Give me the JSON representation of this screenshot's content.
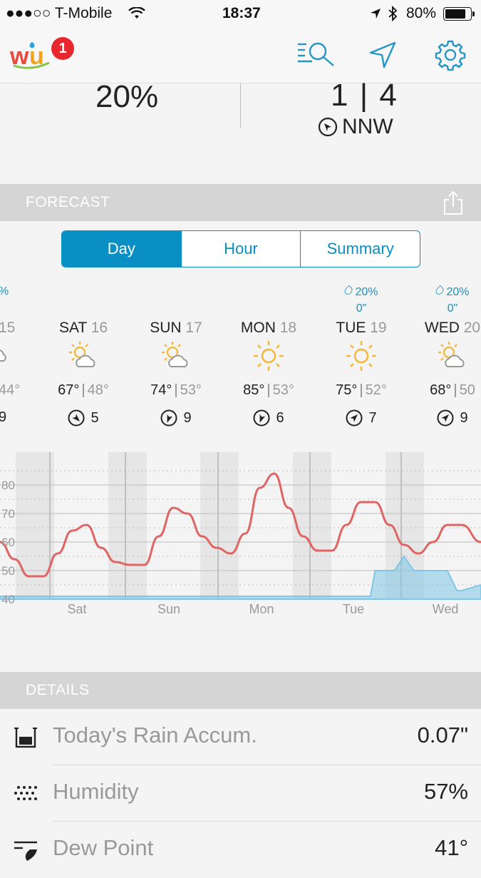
{
  "status_bar": {
    "carrier": "●●●○○ T-Mobile",
    "time": "18:37",
    "battery": "80%"
  },
  "app_bar": {
    "badge_count": "1",
    "icons": [
      "wu-logo",
      "search-list-icon",
      "location-arrow-icon",
      "gear-icon"
    ]
  },
  "conditions": {
    "left_value": "20%",
    "right_value": "1 | 4",
    "wind_dir": "NNW"
  },
  "forecast": {
    "title": "FORECAST",
    "tabs": [
      {
        "label": "Day",
        "active": true
      },
      {
        "label": "Hour",
        "active": false
      },
      {
        "label": "Summary",
        "active": false
      }
    ],
    "left_edge": {
      "precip": "%",
      "day_num": "15",
      "low": "44°",
      "wind": "9"
    },
    "days": [
      {
        "name": "SAT",
        "num": "16",
        "precip_pct": "",
        "precip_amt": "",
        "icon": "partly-sunny",
        "high": "67°",
        "low": "48°",
        "wind": "5"
      },
      {
        "name": "SUN",
        "num": "17",
        "precip_pct": "",
        "precip_amt": "",
        "icon": "partly-sunny",
        "high": "74°",
        "low": "53°",
        "wind": "9"
      },
      {
        "name": "MON",
        "num": "18",
        "precip_pct": "",
        "precip_amt": "",
        "icon": "sunny",
        "high": "85°",
        "low": "53°",
        "wind": "6"
      },
      {
        "name": "TUE",
        "num": "19",
        "precip_pct": "20%",
        "precip_amt": "0\"",
        "icon": "sunny",
        "high": "75°",
        "low": "52°",
        "wind": "7"
      },
      {
        "name": "WED",
        "num": "20",
        "precip_pct": "20%",
        "precip_amt": "0\"",
        "icon": "partly-sunny",
        "high": "68°",
        "low": "50",
        "wind": "9"
      }
    ]
  },
  "chart_data": {
    "type": "line",
    "y_ticks": [
      "40",
      "50",
      "60",
      "70",
      "80"
    ],
    "ylim": [
      40,
      85
    ],
    "x_labels": [
      "Sat",
      "Sun",
      "Mon",
      "Tue",
      "Wed"
    ],
    "grid": true,
    "series": [
      {
        "kind": "temperature",
        "color": "#e06464",
        "x": [
          0.0,
          0.03,
          0.06,
          0.09,
          0.12,
          0.15,
          0.18,
          0.21,
          0.24,
          0.27,
          0.3,
          0.33,
          0.36,
          0.39,
          0.42,
          0.45,
          0.48,
          0.51,
          0.54,
          0.57,
          0.6,
          0.63,
          0.66,
          0.69,
          0.72,
          0.75,
          0.78,
          0.81,
          0.84,
          0.87,
          0.9,
          0.93,
          0.96,
          1.0
        ],
        "y": [
          60,
          54,
          48,
          48,
          56,
          64,
          66,
          58,
          53,
          52,
          52,
          62,
          72,
          70,
          62,
          58,
          56,
          63,
          79,
          84,
          72,
          62,
          57,
          57,
          66,
          74,
          74,
          66,
          59,
          56,
          60,
          66,
          66,
          60
        ]
      },
      {
        "kind": "precipitation",
        "color": "#7fc7e6",
        "x": [
          0.0,
          0.77,
          0.78,
          0.82,
          0.84,
          0.86,
          0.87,
          0.88,
          0.9,
          0.92,
          0.93,
          0.95,
          0.96,
          1.0
        ],
        "y": [
          41,
          41,
          50,
          50,
          55,
          50,
          50,
          50,
          50,
          50,
          50,
          43,
          43,
          45
        ]
      }
    ]
  },
  "details": {
    "title": "DETAILS",
    "rows": [
      {
        "label": "Today's Rain Accum.",
        "value": "0.07\"",
        "icon": "rain-gauge-icon"
      },
      {
        "label": "Humidity",
        "value": "57%",
        "icon": "humidity-dots-icon"
      },
      {
        "label": "Dew Point",
        "value": "41°",
        "icon": "dew-point-icon"
      }
    ]
  }
}
